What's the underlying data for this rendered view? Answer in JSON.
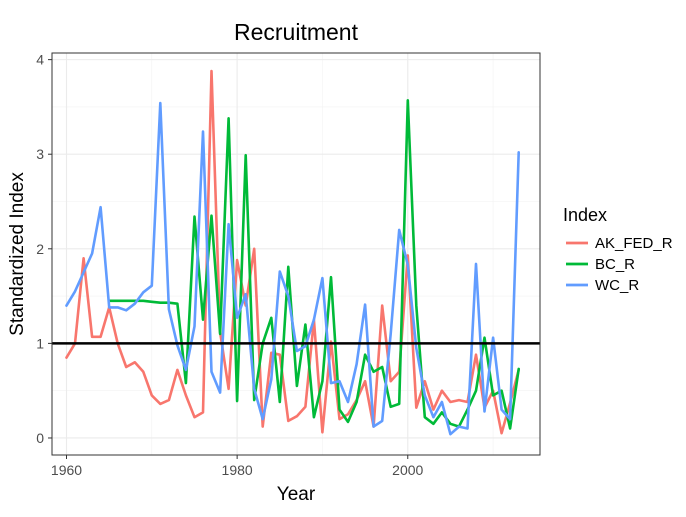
{
  "chart_data": {
    "type": "line",
    "title": "Recruitment",
    "xlabel": "Year",
    "ylabel": "Standardized Index",
    "xlim": [
      1958.3,
      2015.5
    ],
    "ylim": [
      -0.18,
      4.07
    ],
    "x_ticks": [
      1960,
      1980,
      2000
    ],
    "x_tick_labels": [
      "1960",
      "1980",
      "2000"
    ],
    "y_ticks": [
      0,
      1,
      2,
      3,
      4
    ],
    "y_tick_labels": [
      "0",
      "1",
      "2",
      "3",
      "4"
    ],
    "grid": true,
    "legend": {
      "title": "Index",
      "position": "right"
    },
    "reference_line": {
      "y": 1,
      "color": "#000000"
    },
    "series": [
      {
        "name": "AK_FED_R",
        "color": "#F8766D",
        "points": [
          [
            1960,
            0.85
          ],
          [
            1961,
            1.0
          ],
          [
            1962,
            1.9
          ],
          [
            1963,
            1.07
          ],
          [
            1964,
            1.07
          ],
          [
            1965,
            1.38
          ],
          [
            1966,
            1.0
          ],
          [
            1967,
            0.75
          ],
          [
            1968,
            0.8
          ],
          [
            1969,
            0.7
          ],
          [
            1970,
            0.45
          ],
          [
            1971,
            0.36
          ],
          [
            1972,
            0.4
          ],
          [
            1973,
            0.72
          ],
          [
            1974,
            0.45
          ],
          [
            1975,
            0.22
          ],
          [
            1976,
            0.27
          ],
          [
            1977,
            3.88
          ],
          [
            1978,
            1.12
          ],
          [
            1979,
            0.52
          ],
          [
            1980,
            1.88
          ],
          [
            1981,
            1.4
          ],
          [
            1982,
            2.0
          ],
          [
            1983,
            0.12
          ],
          [
            1984,
            0.9
          ],
          [
            1985,
            0.88
          ],
          [
            1986,
            0.18
          ],
          [
            1987,
            0.23
          ],
          [
            1988,
            0.33
          ],
          [
            1989,
            1.25
          ],
          [
            1990,
            0.06
          ],
          [
            1991,
            1.02
          ],
          [
            1992,
            0.2
          ],
          [
            1993,
            0.25
          ],
          [
            1994,
            0.4
          ],
          [
            1995,
            0.6
          ],
          [
            1996,
            0.12
          ],
          [
            1997,
            1.4
          ],
          [
            1998,
            0.6
          ],
          [
            1999,
            0.7
          ],
          [
            2000,
            1.93
          ],
          [
            2001,
            0.32
          ],
          [
            2002,
            0.6
          ],
          [
            2003,
            0.3
          ],
          [
            2004,
            0.5
          ],
          [
            2005,
            0.38
          ],
          [
            2006,
            0.4
          ],
          [
            2007,
            0.38
          ],
          [
            2008,
            0.88
          ],
          [
            2009,
            0.32
          ],
          [
            2010,
            0.5
          ],
          [
            2011,
            0.05
          ],
          [
            2012,
            0.37
          ],
          [
            2013,
            0.72
          ]
        ]
      },
      {
        "name": "BC_R",
        "color": "#00BA38",
        "points": [
          [
            1965,
            1.45
          ],
          [
            1966,
            1.45
          ],
          [
            1967,
            1.45
          ],
          [
            1968,
            1.45
          ],
          [
            1969,
            1.45
          ],
          [
            1970,
            1.44
          ],
          [
            1971,
            1.43
          ],
          [
            1972,
            1.43
          ],
          [
            1973,
            1.42
          ],
          [
            1974,
            0.58
          ],
          [
            1975,
            2.34
          ],
          [
            1976,
            1.25
          ],
          [
            1977,
            2.35
          ],
          [
            1978,
            1.1
          ],
          [
            1979,
            3.38
          ],
          [
            1980,
            0.39
          ],
          [
            1981,
            2.99
          ],
          [
            1982,
            0.4
          ],
          [
            1983,
            1.0
          ],
          [
            1984,
            1.27
          ],
          [
            1985,
            0.38
          ],
          [
            1986,
            1.81
          ],
          [
            1987,
            0.55
          ],
          [
            1988,
            1.2
          ],
          [
            1989,
            0.22
          ],
          [
            1990,
            0.6
          ],
          [
            1991,
            1.7
          ],
          [
            1992,
            0.3
          ],
          [
            1993,
            0.17
          ],
          [
            1994,
            0.38
          ],
          [
            1995,
            0.88
          ],
          [
            1996,
            0.7
          ],
          [
            1997,
            0.75
          ],
          [
            1998,
            0.33
          ],
          [
            1999,
            0.36
          ],
          [
            2000,
            3.57
          ],
          [
            2001,
            1.4
          ],
          [
            2002,
            0.22
          ],
          [
            2003,
            0.15
          ],
          [
            2004,
            0.27
          ],
          [
            2005,
            0.15
          ],
          [
            2006,
            0.12
          ],
          [
            2007,
            0.3
          ],
          [
            2008,
            0.5
          ],
          [
            2009,
            1.06
          ],
          [
            2010,
            0.45
          ],
          [
            2011,
            0.5
          ],
          [
            2012,
            0.1
          ],
          [
            2013,
            0.73
          ]
        ]
      },
      {
        "name": "WC_R",
        "color": "#619CFF",
        "points": [
          [
            1960,
            1.4
          ],
          [
            1961,
            1.55
          ],
          [
            1962,
            1.75
          ],
          [
            1963,
            1.95
          ],
          [
            1964,
            2.44
          ],
          [
            1965,
            1.38
          ],
          [
            1966,
            1.38
          ],
          [
            1967,
            1.35
          ],
          [
            1968,
            1.42
          ],
          [
            1969,
            1.54
          ],
          [
            1970,
            1.61
          ],
          [
            1971,
            3.54
          ],
          [
            1972,
            1.36
          ],
          [
            1973,
            0.98
          ],
          [
            1974,
            0.72
          ],
          [
            1975,
            1.18
          ],
          [
            1976,
            3.24
          ],
          [
            1977,
            0.7
          ],
          [
            1978,
            0.48
          ],
          [
            1979,
            2.26
          ],
          [
            1980,
            1.27
          ],
          [
            1981,
            1.52
          ],
          [
            1982,
            0.52
          ],
          [
            1983,
            0.2
          ],
          [
            1984,
            0.62
          ],
          [
            1985,
            1.76
          ],
          [
            1986,
            1.5
          ],
          [
            1987,
            0.92
          ],
          [
            1988,
            0.97
          ],
          [
            1989,
            1.25
          ],
          [
            1990,
            1.69
          ],
          [
            1991,
            0.58
          ],
          [
            1992,
            0.6
          ],
          [
            1993,
            0.38
          ],
          [
            1994,
            0.78
          ],
          [
            1995,
            1.41
          ],
          [
            1996,
            0.12
          ],
          [
            1997,
            0.18
          ],
          [
            1998,
            1.1
          ],
          [
            1999,
            2.2
          ],
          [
            2000,
            1.83
          ],
          [
            2001,
            0.95
          ],
          [
            2002,
            0.45
          ],
          [
            2003,
            0.22
          ],
          [
            2004,
            0.38
          ],
          [
            2005,
            0.04
          ],
          [
            2006,
            0.12
          ],
          [
            2007,
            0.1
          ],
          [
            2008,
            1.84
          ],
          [
            2009,
            0.28
          ],
          [
            2010,
            1.06
          ],
          [
            2011,
            0.3
          ],
          [
            2012,
            0.2
          ],
          [
            2013,
            3.02
          ]
        ]
      }
    ]
  }
}
